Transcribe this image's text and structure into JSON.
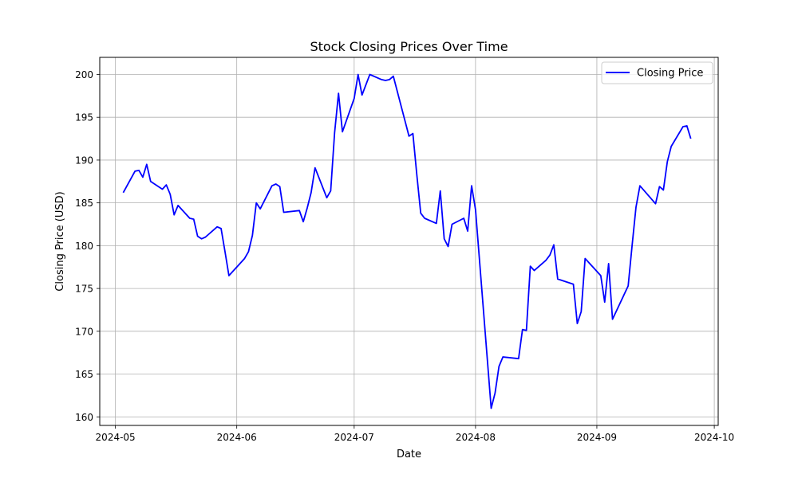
{
  "chart_data": {
    "type": "line",
    "title": "Stock Closing Prices Over Time",
    "xlabel": "Date",
    "ylabel": "Closing Price (USD)",
    "xlim": [
      "2024-04-27",
      "2024-10-02"
    ],
    "ylim": [
      159,
      202
    ],
    "x_ticks": [
      "2024-05-01",
      "2024-06-01",
      "2024-07-01",
      "2024-08-01",
      "2024-09-01",
      "2024-10-01"
    ],
    "x_tick_labels": [
      "2024-05",
      "2024-06",
      "2024-07",
      "2024-08",
      "2024-09",
      "2024-10"
    ],
    "y_ticks": [
      160,
      165,
      170,
      175,
      180,
      185,
      190,
      195,
      200
    ],
    "y_tick_labels": [
      "160",
      "165",
      "170",
      "175",
      "180",
      "185",
      "190",
      "195",
      "200"
    ],
    "grid": true,
    "legend_position": "top-right",
    "series": [
      {
        "name": "Closing Price",
        "color": "#0000ff",
        "x": [
          "2024-05-03",
          "2024-05-06",
          "2024-05-07",
          "2024-05-08",
          "2024-05-09",
          "2024-05-10",
          "2024-05-13",
          "2024-05-14",
          "2024-05-15",
          "2024-05-16",
          "2024-05-17",
          "2024-05-20",
          "2024-05-21",
          "2024-05-22",
          "2024-05-23",
          "2024-05-24",
          "2024-05-27",
          "2024-05-28",
          "2024-05-29",
          "2024-05-30",
          "2024-06-03",
          "2024-06-04",
          "2024-06-05",
          "2024-06-06",
          "2024-06-07",
          "2024-06-10",
          "2024-06-11",
          "2024-06-12",
          "2024-06-13",
          "2024-06-17",
          "2024-06-18",
          "2024-06-19",
          "2024-06-20",
          "2024-06-21",
          "2024-06-24",
          "2024-06-25",
          "2024-06-26",
          "2024-06-27",
          "2024-06-28",
          "2024-07-01",
          "2024-07-02",
          "2024-07-03",
          "2024-07-05",
          "2024-07-08",
          "2024-07-09",
          "2024-07-10",
          "2024-07-11",
          "2024-07-15",
          "2024-07-16",
          "2024-07-17",
          "2024-07-18",
          "2024-07-19",
          "2024-07-22",
          "2024-07-23",
          "2024-07-24",
          "2024-07-25",
          "2024-07-26",
          "2024-07-29",
          "2024-07-30",
          "2024-07-31",
          "2024-08-01",
          "2024-08-05",
          "2024-08-06",
          "2024-08-07",
          "2024-08-08",
          "2024-08-12",
          "2024-08-13",
          "2024-08-14",
          "2024-08-15",
          "2024-08-16",
          "2024-08-19",
          "2024-08-20",
          "2024-08-21",
          "2024-08-22",
          "2024-08-26",
          "2024-08-27",
          "2024-08-28",
          "2024-08-29",
          "2024-09-02",
          "2024-09-03",
          "2024-09-04",
          "2024-09-05",
          "2024-09-09",
          "2024-09-10",
          "2024-09-11",
          "2024-09-12",
          "2024-09-16",
          "2024-09-17",
          "2024-09-18",
          "2024-09-19",
          "2024-09-20",
          "2024-09-23",
          "2024-09-24",
          "2024-09-25"
        ],
        "y": [
          186.2,
          188.7,
          188.8,
          188.0,
          189.5,
          187.5,
          186.6,
          187.1,
          186.0,
          183.6,
          184.7,
          183.2,
          183.1,
          181.1,
          180.8,
          181.0,
          182.2,
          182.0,
          179.3,
          176.5,
          178.5,
          179.3,
          181.2,
          185.0,
          184.3,
          187.0,
          187.2,
          186.9,
          183.9,
          184.1,
          182.8,
          184.4,
          186.2,
          189.1,
          185.6,
          186.4,
          193.2,
          197.8,
          193.3,
          197.2,
          200.0,
          197.6,
          200.0,
          199.4,
          199.3,
          199.4,
          199.8,
          192.8,
          193.1,
          188.3,
          183.8,
          183.2,
          182.6,
          186.4,
          180.8,
          179.9,
          182.5,
          183.2,
          181.7,
          187.0,
          184.2,
          161.0,
          162.8,
          165.9,
          167.0,
          166.8,
          170.2,
          170.1,
          177.6,
          177.1,
          178.3,
          178.9,
          180.1,
          176.1,
          175.5,
          170.9,
          172.3,
          178.5,
          176.5,
          173.4,
          177.9,
          171.4,
          175.3,
          180.0,
          184.5,
          187.0,
          184.9,
          186.9,
          186.5,
          189.8,
          191.6,
          193.9,
          194.0,
          192.5
        ]
      }
    ]
  }
}
